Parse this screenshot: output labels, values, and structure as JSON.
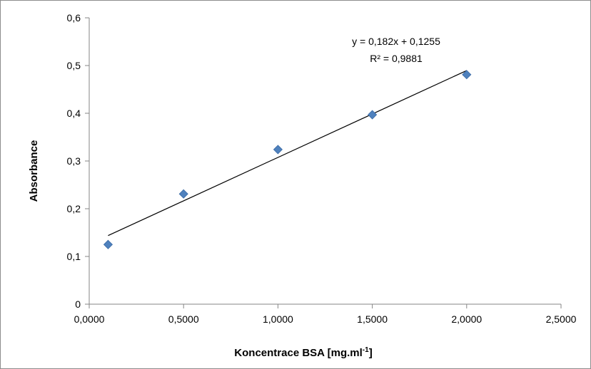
{
  "chart_data": {
    "type": "scatter",
    "xlabel": "Koncentrace BSA [mg.ml-1]",
    "xlabel_parts": {
      "main": "Koncentrace BSA [mg.ml",
      "sup": "-1",
      "end": "]"
    },
    "ylabel": "Absorbance",
    "xlim": [
      0,
      2.5
    ],
    "ylim": [
      0,
      0.6
    ],
    "x_ticks": [
      0,
      0.5,
      1.0,
      1.5,
      2.0,
      2.5
    ],
    "x_tick_labels": [
      "0,0000",
      "0,5000",
      "1,0000",
      "1,5000",
      "2,0000",
      "2,5000"
    ],
    "y_ticks": [
      0,
      0.1,
      0.2,
      0.3,
      0.4,
      0.5,
      0.6
    ],
    "y_tick_labels": [
      "0",
      "0,1",
      "0,2",
      "0,3",
      "0,4",
      "0,5",
      "0,6"
    ],
    "grid": false,
    "series": [
      {
        "x": [
          0.1,
          0.5,
          1.0,
          1.5,
          2.0
        ],
        "y": [
          0.125,
          0.231,
          0.324,
          0.397,
          0.481
        ],
        "marker": "diamond",
        "color": "#4f81bd"
      }
    ],
    "trendline": {
      "type": "linear",
      "slope": 0.182,
      "intercept": 0.1255,
      "x_range": [
        0.1,
        2.0
      ],
      "color": "#000000",
      "equation_label": "y = 0,182x + 0,1255",
      "r2_label": "R² = 0,9881"
    }
  }
}
